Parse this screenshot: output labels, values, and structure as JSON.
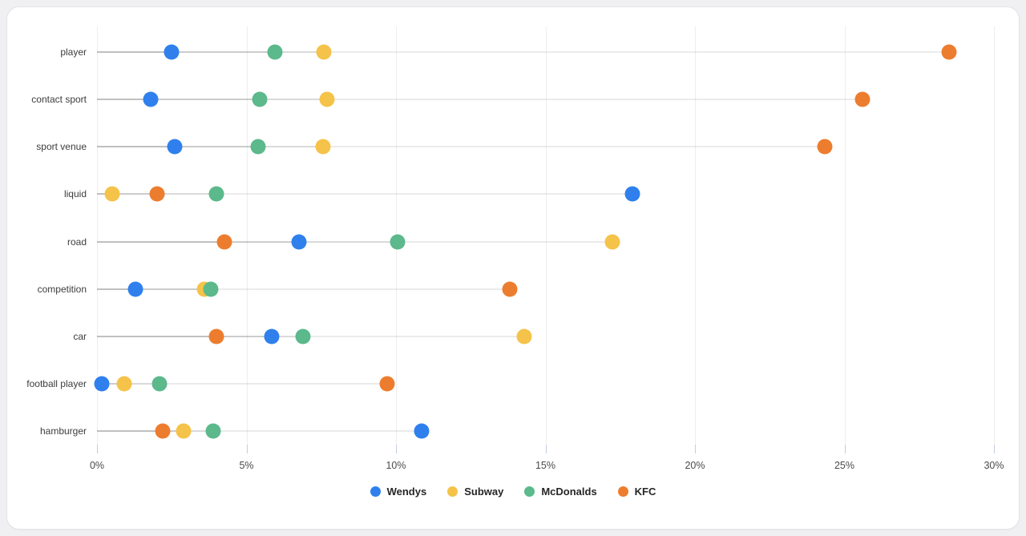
{
  "chart_data": {
    "type": "scatter",
    "title": "",
    "xlabel": "",
    "ylabel": "",
    "xlim": [
      0,
      30
    ],
    "x_tick_labels": [
      "0%",
      "5%",
      "10%",
      "15%",
      "20%",
      "25%",
      "30%"
    ],
    "x_tick_values": [
      0,
      5,
      10,
      15,
      20,
      25,
      30
    ],
    "grid": "vertical",
    "legend_position": "bottom-center",
    "unit": "percent",
    "categories": [
      "player",
      "contact sport",
      "sport venue",
      "liquid",
      "road",
      "competition",
      "car",
      "football player",
      "hamburger"
    ],
    "series": [
      {
        "name": "Wendys",
        "color": "#2F80ED",
        "values": [
          2.5,
          1.8,
          2.6,
          17.9,
          6.75,
          1.3,
          5.85,
          0.15,
          10.85
        ]
      },
      {
        "name": "Subway",
        "color": "#F5C349",
        "values": [
          7.6,
          7.7,
          7.55,
          0.5,
          17.25,
          3.6,
          14.3,
          0.9,
          2.9
        ]
      },
      {
        "name": "McDonalds",
        "color": "#5BB98B",
        "values": [
          5.95,
          5.45,
          5.4,
          4.0,
          10.05,
          3.8,
          6.9,
          2.1,
          3.9
        ]
      },
      {
        "name": "KFC",
        "color": "#ED7D2E",
        "values": [
          28.5,
          25.6,
          24.35,
          2.0,
          4.25,
          13.8,
          4.0,
          9.7,
          2.2
        ]
      }
    ]
  },
  "layout_hints": {
    "leader_line_note": "each dot has a faint gray line from 0% to its value; overlaps appear darker"
  }
}
